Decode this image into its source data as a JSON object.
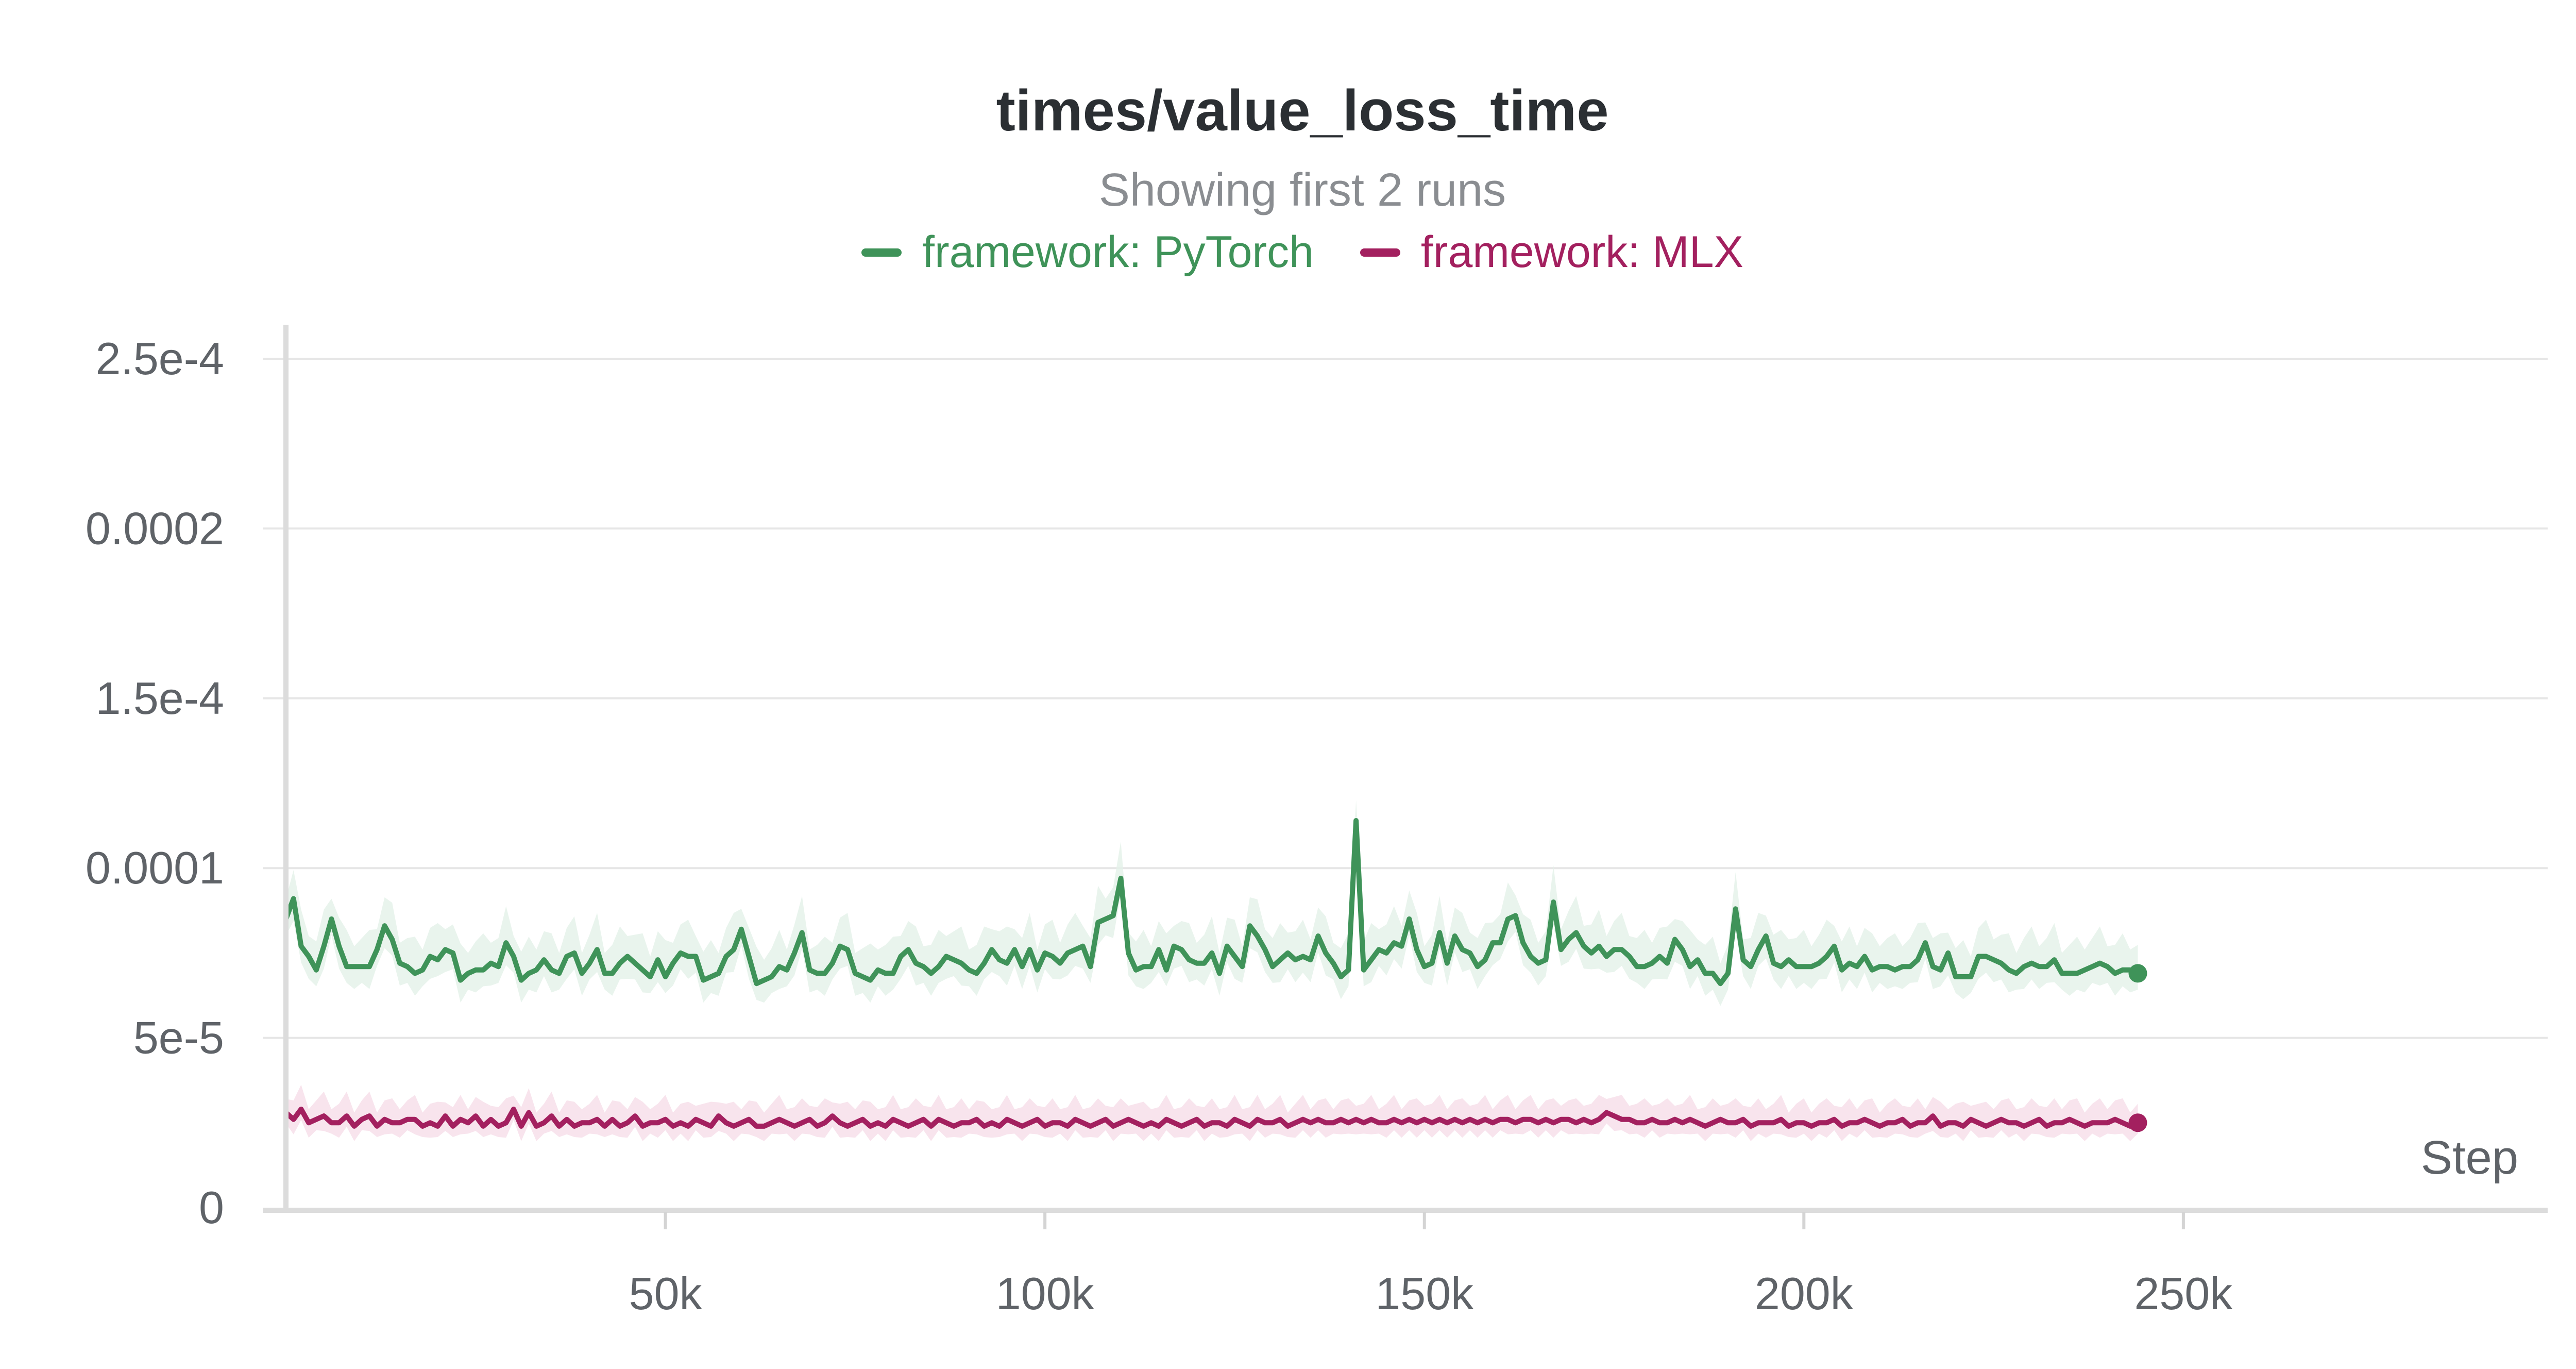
{
  "chart_data": {
    "type": "line",
    "title": "times/value_loss_time",
    "subtitle": "Showing first 2 runs",
    "xlabel": "Step",
    "ylabel": "",
    "xlim": [
      0,
      298000
    ],
    "ylim": [
      0,
      0.00025
    ],
    "grid": true,
    "legend_position": "top-center",
    "x_ticks": [
      50000,
      100000,
      150000,
      200000,
      250000
    ],
    "x_tick_labels": [
      "50k",
      "100k",
      "150k",
      "200k",
      "250k"
    ],
    "y_ticks": [
      0,
      5e-05,
      0.0001,
      0.00015,
      0.0002,
      0.00025
    ],
    "y_tick_labels": [
      "0",
      "5e-5",
      "0.0001",
      "1.5e-4",
      "0.0002",
      "2.5e-4"
    ],
    "series": [
      {
        "name": "framework: PyTorch",
        "color": "#3f9359",
        "band_color": "#e3f1e8",
        "x_start": 0,
        "x_step": 1000,
        "values": [
          8.5e-05,
          9.1e-05,
          7.7e-05,
          7.4e-05,
          7e-05,
          7.7e-05,
          8.5e-05,
          7.7e-05,
          7.1e-05,
          7.1e-05,
          7.1e-05,
          7.1e-05,
          7.6e-05,
          8.3e-05,
          7.9e-05,
          7.2e-05,
          7.1e-05,
          6.9e-05,
          7e-05,
          7.4e-05,
          7.3e-05,
          7.6e-05,
          7.5e-05,
          6.7e-05,
          6.9e-05,
          7e-05,
          7e-05,
          7.2e-05,
          7.1e-05,
          7.8e-05,
          7.4e-05,
          6.7e-05,
          6.9e-05,
          7e-05,
          7.3e-05,
          7e-05,
          6.9e-05,
          7.4e-05,
          7.5e-05,
          6.9e-05,
          7.2e-05,
          7.6e-05,
          6.9e-05,
          6.9e-05,
          7.2e-05,
          7.4e-05,
          7.2e-05,
          7e-05,
          6.8e-05,
          7.3e-05,
          6.8e-05,
          7.2e-05,
          7.5e-05,
          7.4e-05,
          7.4e-05,
          6.7e-05,
          6.8e-05,
          6.9e-05,
          7.4e-05,
          7.6e-05,
          8.2e-05,
          7.4e-05,
          6.6e-05,
          6.7e-05,
          6.8e-05,
          7.1e-05,
          7e-05,
          7.5e-05,
          8.1e-05,
          7e-05,
          6.9e-05,
          6.9e-05,
          7.2e-05,
          7.7e-05,
          7.6e-05,
          6.9e-05,
          6.8e-05,
          6.7e-05,
          7e-05,
          6.9e-05,
          6.9e-05,
          7.4e-05,
          7.6e-05,
          7.2e-05,
          7.1e-05,
          6.9e-05,
          7.1e-05,
          7.4e-05,
          7.3e-05,
          7.2e-05,
          7e-05,
          6.9e-05,
          7.2e-05,
          7.6e-05,
          7.3e-05,
          7.2e-05,
          7.6e-05,
          7.1e-05,
          7.6e-05,
          7e-05,
          7.5e-05,
          7.4e-05,
          7.2e-05,
          7.5e-05,
          7.6e-05,
          7.7e-05,
          7.1e-05,
          8.4e-05,
          8.5e-05,
          8.6e-05,
          9.7e-05,
          7.5e-05,
          7e-05,
          7.1e-05,
          7.1e-05,
          7.6e-05,
          7e-05,
          7.7e-05,
          7.6e-05,
          7.3e-05,
          7.2e-05,
          7.2e-05,
          7.5e-05,
          6.9e-05,
          7.7e-05,
          7.4e-05,
          7.1e-05,
          8.3e-05,
          8e-05,
          7.6e-05,
          7.1e-05,
          7.3e-05,
          7.5e-05,
          7.3e-05,
          7.4e-05,
          7.3e-05,
          8e-05,
          7.5e-05,
          7.2e-05,
          6.8e-05,
          7e-05,
          0.000114,
          7e-05,
          7.3e-05,
          7.6e-05,
          7.5e-05,
          7.8e-05,
          7.7e-05,
          8.5e-05,
          7.6e-05,
          7.1e-05,
          7.2e-05,
          8.1e-05,
          7.2e-05,
          8e-05,
          7.6e-05,
          7.5e-05,
          7.1e-05,
          7.3e-05,
          7.8e-05,
          7.8e-05,
          8.5e-05,
          8.6e-05,
          7.8e-05,
          7.4e-05,
          7.2e-05,
          7.3e-05,
          9e-05,
          7.6e-05,
          7.9e-05,
          8.1e-05,
          7.7e-05,
          7.5e-05,
          7.7e-05,
          7.4e-05,
          7.6e-05,
          7.6e-05,
          7.4e-05,
          7.1e-05,
          7.1e-05,
          7.2e-05,
          7.4e-05,
          7.2e-05,
          7.9e-05,
          7.6e-05,
          7.1e-05,
          7.3e-05,
          6.9e-05,
          6.9e-05,
          6.6e-05,
          6.9e-05,
          8.8e-05,
          7.3e-05,
          7.1e-05,
          7.6e-05,
          8e-05,
          7.2e-05,
          7.1e-05,
          7.3e-05,
          7.1e-05,
          7.1e-05,
          7.1e-05,
          7.2e-05,
          7.4e-05,
          7.7e-05,
          7e-05,
          7.2e-05,
          7.1e-05,
          7.4e-05,
          7e-05,
          7.1e-05,
          7.1e-05,
          7e-05,
          7.1e-05,
          7.1e-05,
          7.3e-05,
          7.8e-05,
          7.1e-05,
          7e-05,
          7.5e-05,
          6.8e-05,
          6.8e-05,
          6.8e-05,
          7.4e-05,
          7.4e-05,
          7.3e-05,
          7.2e-05,
          7e-05,
          6.9e-05,
          7.1e-05,
          7.2e-05,
          7.1e-05,
          7.1e-05,
          7.3e-05,
          6.9e-05,
          6.9e-05,
          6.9e-05,
          7e-05,
          7.1e-05,
          7.2e-05,
          7.1e-05,
          6.9e-05,
          7e-05,
          7e-05,
          6.9e-05
        ]
      },
      {
        "name": "framework: MLX",
        "color": "#a3205f",
        "band_color": "#f6dde9",
        "x_start": 0,
        "x_step": 1000,
        "values": [
          2.8e-05,
          2.6e-05,
          2.9e-05,
          2.5e-05,
          2.6e-05,
          2.7e-05,
          2.5e-05,
          2.5e-05,
          2.7e-05,
          2.4e-05,
          2.6e-05,
          2.7e-05,
          2.4e-05,
          2.6e-05,
          2.5e-05,
          2.5e-05,
          2.6e-05,
          2.6e-05,
          2.4e-05,
          2.5e-05,
          2.4e-05,
          2.7e-05,
          2.4e-05,
          2.6e-05,
          2.5e-05,
          2.7e-05,
          2.4e-05,
          2.6e-05,
          2.4e-05,
          2.5e-05,
          2.9e-05,
          2.4e-05,
          2.8e-05,
          2.4e-05,
          2.5e-05,
          2.7e-05,
          2.4e-05,
          2.6e-05,
          2.4e-05,
          2.5e-05,
          2.5e-05,
          2.6e-05,
          2.4e-05,
          2.6e-05,
          2.4e-05,
          2.5e-05,
          2.7e-05,
          2.4e-05,
          2.5e-05,
          2.5e-05,
          2.6e-05,
          2.4e-05,
          2.5e-05,
          2.4e-05,
          2.6e-05,
          2.5e-05,
          2.4e-05,
          2.7e-05,
          2.5e-05,
          2.4e-05,
          2.5e-05,
          2.6e-05,
          2.4e-05,
          2.4e-05,
          2.5e-05,
          2.6e-05,
          2.5e-05,
          2.4e-05,
          2.5e-05,
          2.6e-05,
          2.4e-05,
          2.5e-05,
          2.7e-05,
          2.5e-05,
          2.4e-05,
          2.5e-05,
          2.6e-05,
          2.4e-05,
          2.5e-05,
          2.4e-05,
          2.6e-05,
          2.5e-05,
          2.4e-05,
          2.5e-05,
          2.6e-05,
          2.4e-05,
          2.6e-05,
          2.5e-05,
          2.4e-05,
          2.5e-05,
          2.5e-05,
          2.6e-05,
          2.4e-05,
          2.5e-05,
          2.4e-05,
          2.6e-05,
          2.5e-05,
          2.4e-05,
          2.5e-05,
          2.6e-05,
          2.4e-05,
          2.5e-05,
          2.5e-05,
          2.4e-05,
          2.6e-05,
          2.5e-05,
          2.4e-05,
          2.5e-05,
          2.6e-05,
          2.4e-05,
          2.5e-05,
          2.6e-05,
          2.5e-05,
          2.4e-05,
          2.5e-05,
          2.4e-05,
          2.6e-05,
          2.5e-05,
          2.4e-05,
          2.5e-05,
          2.6e-05,
          2.4e-05,
          2.5e-05,
          2.5e-05,
          2.4e-05,
          2.6e-05,
          2.5e-05,
          2.4e-05,
          2.6e-05,
          2.5e-05,
          2.5e-05,
          2.6e-05,
          2.4e-05,
          2.5e-05,
          2.6e-05,
          2.5e-05,
          2.6e-05,
          2.5e-05,
          2.5e-05,
          2.6e-05,
          2.5e-05,
          2.6e-05,
          2.5e-05,
          2.6e-05,
          2.5e-05,
          2.5e-05,
          2.6e-05,
          2.5e-05,
          2.6e-05,
          2.5e-05,
          2.6e-05,
          2.5e-05,
          2.6e-05,
          2.5e-05,
          2.6e-05,
          2.5e-05,
          2.6e-05,
          2.5e-05,
          2.6e-05,
          2.5e-05,
          2.6e-05,
          2.6e-05,
          2.5e-05,
          2.6e-05,
          2.6e-05,
          2.5e-05,
          2.6e-05,
          2.5e-05,
          2.6e-05,
          2.6e-05,
          2.5e-05,
          2.6e-05,
          2.5e-05,
          2.6e-05,
          2.8e-05,
          2.7e-05,
          2.6e-05,
          2.6e-05,
          2.5e-05,
          2.5e-05,
          2.6e-05,
          2.5e-05,
          2.5e-05,
          2.6e-05,
          2.5e-05,
          2.6e-05,
          2.5e-05,
          2.4e-05,
          2.5e-05,
          2.6e-05,
          2.5e-05,
          2.5e-05,
          2.6e-05,
          2.4e-05,
          2.5e-05,
          2.5e-05,
          2.5e-05,
          2.6e-05,
          2.4e-05,
          2.5e-05,
          2.5e-05,
          2.4e-05,
          2.5e-05,
          2.5e-05,
          2.6e-05,
          2.4e-05,
          2.5e-05,
          2.5e-05,
          2.6e-05,
          2.5e-05,
          2.4e-05,
          2.5e-05,
          2.5e-05,
          2.6e-05,
          2.4e-05,
          2.5e-05,
          2.5e-05,
          2.7e-05,
          2.4e-05,
          2.5e-05,
          2.5e-05,
          2.4e-05,
          2.6e-05,
          2.5e-05,
          2.4e-05,
          2.5e-05,
          2.6e-05,
          2.5e-05,
          2.5e-05,
          2.4e-05,
          2.5e-05,
          2.6e-05,
          2.4e-05,
          2.5e-05,
          2.5e-05,
          2.6e-05,
          2.5e-05,
          2.4e-05,
          2.5e-05,
          2.5e-05,
          2.5e-05,
          2.6e-05,
          2.5e-05,
          2.4e-05,
          2.5e-05
        ]
      }
    ]
  }
}
